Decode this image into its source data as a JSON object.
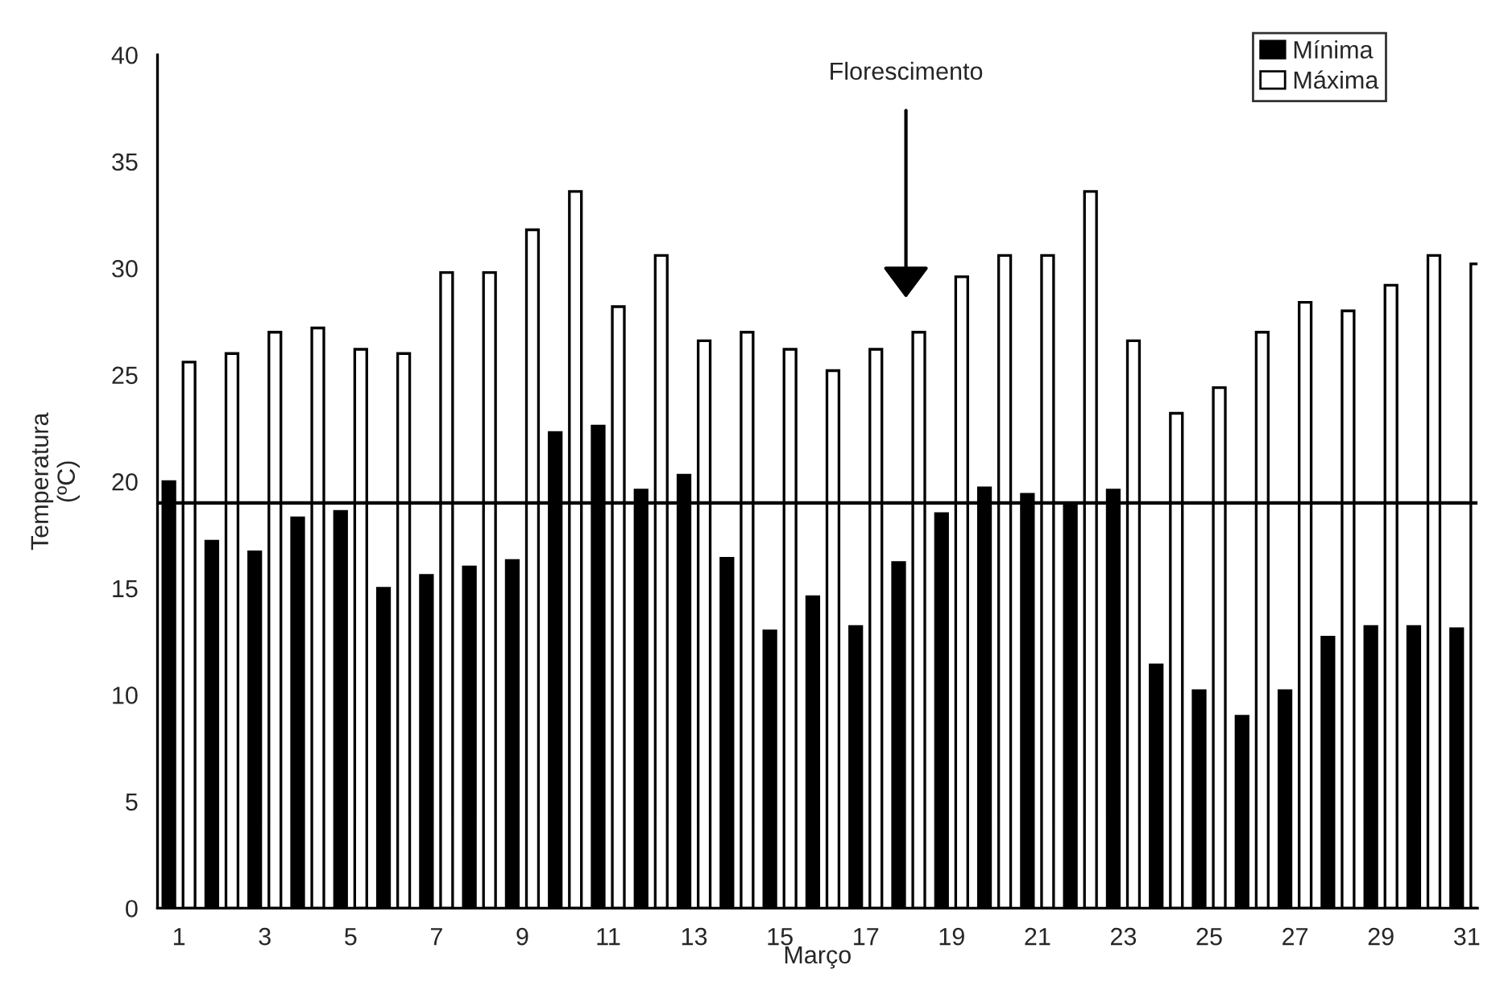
{
  "chart_data": {
    "type": "bar",
    "xlabel": "Março",
    "ylabel": "Temperatura\n(ºC)",
    "categories": [
      "1",
      null,
      "3",
      null,
      "5",
      null,
      "7",
      null,
      "9",
      null,
      "11",
      null,
      "13",
      null,
      "15",
      null,
      "17",
      null,
      "19",
      null,
      "21",
      null,
      "23",
      null,
      "25",
      null,
      "27",
      null,
      "29",
      null,
      "31"
    ],
    "series": [
      {
        "name": "Mínima",
        "color": "#000000",
        "values": [
          20.0,
          17.2,
          16.7,
          18.3,
          18.6,
          15.0,
          15.6,
          16.0,
          16.3,
          22.3,
          22.6,
          19.6,
          20.3,
          16.4,
          13.0,
          14.6,
          13.2,
          16.2,
          18.5,
          19.7,
          19.4,
          19.0,
          19.6,
          11.4,
          10.2,
          9.0,
          10.2,
          12.7,
          13.2,
          13.2,
          13.1
        ]
      },
      {
        "name": "Máxima",
        "color": "#ffffff",
        "values": [
          25.6,
          26.0,
          27.0,
          27.2,
          26.2,
          26.0,
          29.8,
          29.8,
          31.8,
          33.6,
          28.2,
          30.6,
          26.6,
          27.0,
          26.2,
          25.2,
          26.2,
          27.0,
          29.6,
          30.6,
          30.6,
          33.6,
          26.6,
          23.2,
          24.4,
          27.0,
          28.4,
          28.0,
          29.2,
          30.6,
          30.2
        ]
      }
    ],
    "ylim": [
      0,
      40
    ],
    "yticks": [
      0,
      5,
      10,
      15,
      20,
      25,
      30,
      35,
      40
    ],
    "ref_lines": [
      {
        "axis": "y",
        "value": 19,
        "color": "#000000"
      }
    ],
    "annotations": [
      "Florescimento"
    ],
    "legend": "top right",
    "grid": false
  }
}
